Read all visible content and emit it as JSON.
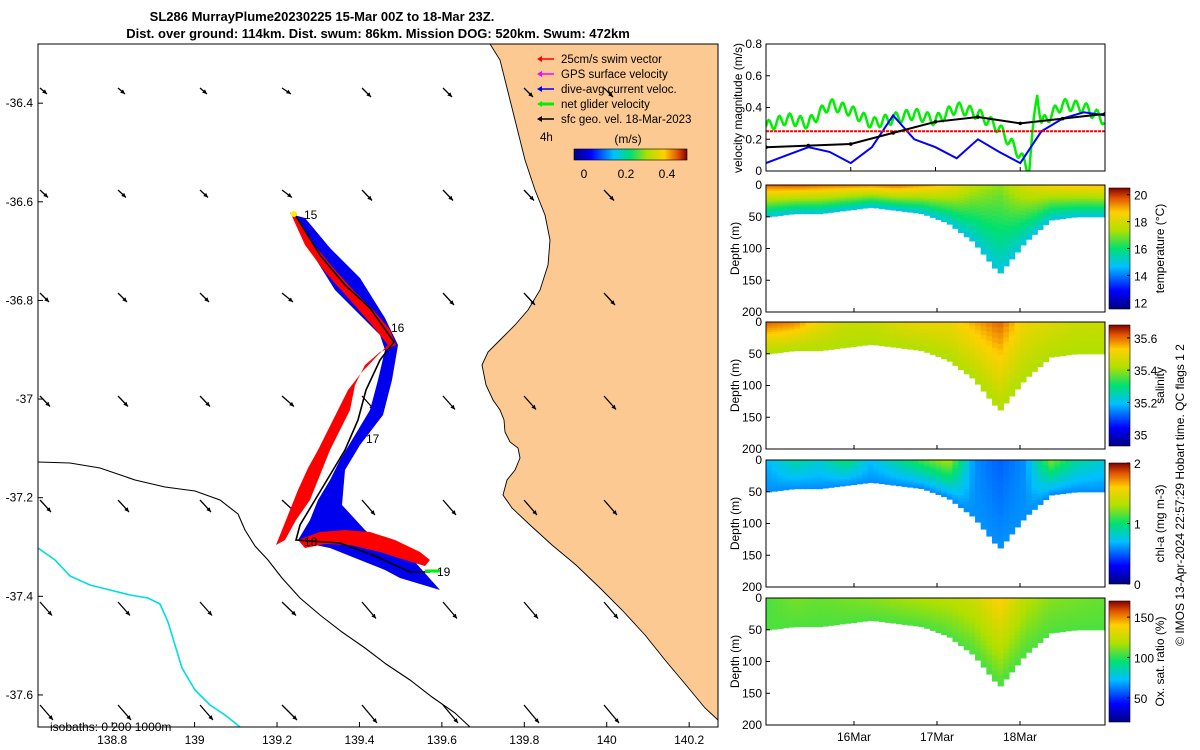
{
  "title": {
    "line1": "SL286 MurrayPlume20230225 15-Mar 00Z to 18-Mar 23Z.",
    "line2": "Dist. over ground: 114km. Dist. swum: 86km. Mission DOG: 520km. Swum: 472km"
  },
  "map": {
    "lon_ticks": [
      "138.8",
      "139",
      "139.2",
      "139.4",
      "139.6",
      "139.8",
      "140",
      "140.2"
    ],
    "lat_ticks": [
      "-36.4",
      "-36.6",
      "-36.8",
      "-37",
      "-37.2",
      "-37.4",
      "-37.6"
    ],
    "xlim": [
      138.62,
      140.27
    ],
    "ylim": [
      -37.665,
      -36.28
    ],
    "legend": [
      {
        "label": "25cm/s swim vector",
        "color": "#ff0000"
      },
      {
        "label": "GPS surface velocity",
        "color": "#ff00ff"
      },
      {
        "label": "dive-avg current veloc.",
        "color": "#0000ff"
      },
      {
        "label": "net glider velocity",
        "color": "#00ee00"
      },
      {
        "label": "sfc geo. vel. 18-Mar-2023",
        "color": "#000000"
      }
    ],
    "colorbar": {
      "label": "(m/s)",
      "ticks": [
        "0",
        "0.2",
        "0.4"
      ],
      "interval": "4h"
    },
    "day_labels": [
      "15",
      "16",
      "17",
      "18",
      "19"
    ],
    "isobath_label": "isobaths: 0   200  1000m",
    "land_color": "#fcc993",
    "isobath_200_color": "#00dddd"
  },
  "chart_data": [
    {
      "type": "line",
      "ylabel": "velocity magnitude (m/s)",
      "ylim": [
        0,
        0.8
      ],
      "yticks": [
        "0",
        "0.2",
        "0.4",
        "0.6",
        "0.8"
      ],
      "x_range_days": [
        15,
        19
      ],
      "series": [
        {
          "name": "net glider velocity",
          "color": "#00ee00",
          "x": [
            15.0,
            15.25,
            15.5,
            15.75,
            16.0,
            16.25,
            16.5,
            16.75,
            17.0,
            17.25,
            17.5,
            17.75,
            18.0,
            18.1,
            18.2,
            18.25,
            18.5,
            18.75,
            19.0
          ],
          "y": [
            0.28,
            0.33,
            0.3,
            0.42,
            0.38,
            0.3,
            0.33,
            0.36,
            0.32,
            0.4,
            0.36,
            0.27,
            0.1,
            0.0,
            0.5,
            0.3,
            0.42,
            0.4,
            0.32
          ]
        },
        {
          "name": "dive-avg current veloc.",
          "color": "#0000ff",
          "x": [
            15.0,
            15.25,
            15.5,
            15.75,
            16.0,
            16.25,
            16.5,
            16.75,
            17.0,
            17.25,
            17.5,
            17.75,
            18.0,
            18.25,
            18.5,
            18.75,
            19.0
          ],
          "y": [
            0.05,
            0.1,
            0.15,
            0.12,
            0.05,
            0.15,
            0.35,
            0.2,
            0.15,
            0.08,
            0.2,
            0.12,
            0.05,
            0.25,
            0.33,
            0.37,
            0.35
          ]
        },
        {
          "name": "25cm/s swim",
          "color": "#ff0000",
          "x": [
            15.0,
            19.0
          ],
          "y": [
            0.25,
            0.25
          ]
        },
        {
          "name": "sfc geo. vel.",
          "color": "#000000",
          "x": [
            15.0,
            15.5,
            16.0,
            16.5,
            17.0,
            17.5,
            18.0,
            18.5,
            19.0
          ],
          "y": [
            0.15,
            0.16,
            0.17,
            0.24,
            0.31,
            0.34,
            0.3,
            0.33,
            0.36
          ]
        }
      ]
    },
    {
      "type": "heatmap",
      "variable": "temperature",
      "ylabel": "Depth (m)",
      "cbar_label": "temperature (°C)",
      "cbar_ticks": [
        "12",
        "14",
        "16",
        "18",
        "20"
      ],
      "vmin": 11.5,
      "vmax": 20.5,
      "depth_ticks": [
        "0",
        "50",
        "100",
        "150",
        "200"
      ],
      "depth_max": 200,
      "depth_profile": [
        50,
        45,
        45,
        40,
        35,
        40,
        45,
        60,
        90,
        140,
        90,
        55,
        50,
        50
      ],
      "surface_profile": [
        19.5,
        19.6,
        19.4,
        19.3,
        19.2,
        19.4,
        19.0,
        18.5,
        17.5,
        17.0,
        18.0,
        18.5,
        18.7,
        18.8
      ],
      "deep_value": 15.0
    },
    {
      "type": "heatmap",
      "variable": "salinity",
      "ylabel": "Depth (m)",
      "cbar_label": "salinity",
      "cbar_ticks": [
        "35",
        "35.2",
        "35.4",
        "35.6"
      ],
      "vmin": 34.93,
      "vmax": 35.68,
      "depth_ticks": [
        "0",
        "50",
        "100",
        "150",
        "200"
      ],
      "depth_max": 200,
      "depth_profile": [
        50,
        45,
        45,
        40,
        35,
        40,
        45,
        60,
        90,
        140,
        90,
        55,
        50,
        50
      ],
      "surface_profile": [
        35.6,
        35.58,
        35.5,
        35.45,
        35.45,
        35.48,
        35.5,
        35.5,
        35.55,
        35.6,
        35.5,
        35.48,
        35.45,
        35.45
      ],
      "deep_value": 35.42
    },
    {
      "type": "heatmap",
      "variable": "chl-a",
      "ylabel": "Depth (m)",
      "cbar_label": "chl-a (mg m-3)",
      "cbar_ticks": [
        "0",
        "1",
        "2"
      ],
      "vmin": 0,
      "vmax": 2,
      "depth_ticks": [
        "0",
        "50",
        "100",
        "150",
        "200"
      ],
      "depth_max": 200,
      "depth_profile": [
        50,
        45,
        45,
        40,
        35,
        40,
        45,
        60,
        90,
        140,
        90,
        55,
        50,
        50
      ],
      "surface_profile": [
        0.7,
        0.9,
        0.8,
        1.0,
        0.7,
        0.9,
        1.1,
        1.3,
        0.6,
        0.5,
        0.6,
        1.2,
        0.9,
        0.8
      ],
      "deep_value": 0.6
    },
    {
      "type": "heatmap",
      "variable": "oxygen saturation",
      "ylabel": "Depth (m)",
      "cbar_label": "Ox. sat. ratio (%)",
      "cbar_ticks": [
        "50",
        "100",
        "150"
      ],
      "vmin": 20,
      "vmax": 170,
      "depth_ticks": [
        "0",
        "50",
        "100",
        "150",
        "200"
      ],
      "depth_max": 200,
      "depth_profile": [
        50,
        45,
        45,
        40,
        35,
        40,
        45,
        60,
        90,
        140,
        90,
        55,
        50,
        50
      ],
      "surface_profile": [
        105,
        110,
        108,
        110,
        112,
        115,
        118,
        120,
        125,
        140,
        120,
        112,
        110,
        108
      ],
      "deep_value": 105,
      "x_ticks": [
        "16Mar",
        "17Mar",
        "18Mar"
      ]
    }
  ],
  "credit": "© IMOS 13-Apr-2024 22:57:29 Hobart time. QC flags 1  2"
}
